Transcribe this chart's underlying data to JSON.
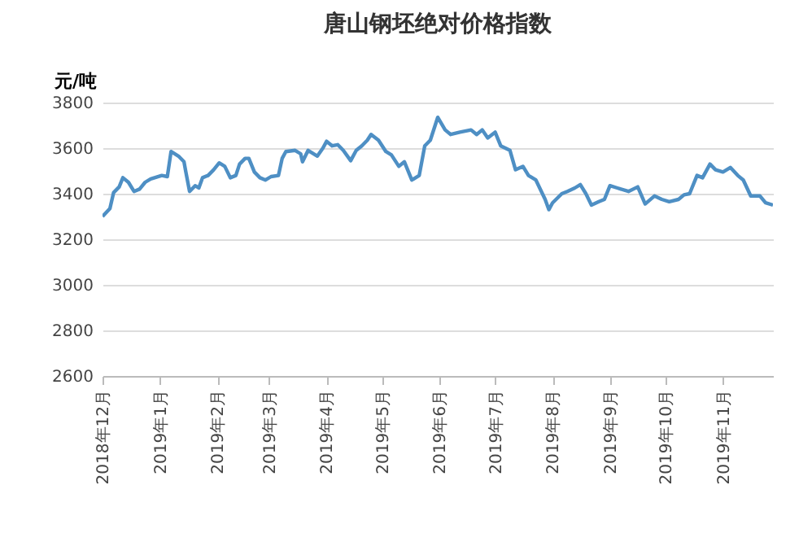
{
  "chart_data": {
    "type": "line",
    "title": "唐山钢坯绝对价格指数",
    "ylabel": "元/吨",
    "x": [
      "2018-12-01",
      "2018-12-05",
      "2018-12-07",
      "2018-12-10",
      "2018-12-12",
      "2018-12-15",
      "2018-12-18",
      "2018-12-21",
      "2018-12-24",
      "2018-12-27",
      "2019-01-02",
      "2019-01-05",
      "2019-01-07",
      "2019-01-11",
      "2019-01-14",
      "2019-01-15",
      "2019-01-17",
      "2019-01-20",
      "2019-01-22",
      "2019-01-24",
      "2019-01-27",
      "2019-01-30",
      "2019-02-02",
      "2019-02-05",
      "2019-02-08",
      "2019-02-11",
      "2019-02-13",
      "2019-02-16",
      "2019-02-18",
      "2019-02-21",
      "2019-02-24",
      "2019-02-27",
      "2019-03-02",
      "2019-03-06",
      "2019-03-08",
      "2019-03-10",
      "2019-03-15",
      "2019-03-18",
      "2019-03-19",
      "2019-03-22",
      "2019-03-27",
      "2019-03-30",
      "2019-04-01",
      "2019-04-04",
      "2019-04-07",
      "2019-04-10",
      "2019-04-14",
      "2019-04-17",
      "2019-04-20",
      "2019-04-23",
      "2019-04-25",
      "2019-04-29",
      "2019-05-03",
      "2019-05-06",
      "2019-05-10",
      "2019-05-13",
      "2019-05-17",
      "2019-05-21",
      "2019-05-24",
      "2019-05-27",
      "2019-05-31",
      "2019-06-04",
      "2019-06-07",
      "2019-06-12",
      "2019-06-18",
      "2019-06-21",
      "2019-06-24",
      "2019-06-27",
      "2019-07-01",
      "2019-07-04",
      "2019-07-09",
      "2019-07-12",
      "2019-07-16",
      "2019-07-19",
      "2019-07-23",
      "2019-07-28",
      "2019-07-30",
      "2019-08-01",
      "2019-08-06",
      "2019-08-09",
      "2019-08-13",
      "2019-08-16",
      "2019-08-19",
      "2019-08-22",
      "2019-08-26",
      "2019-08-29",
      "2019-09-01",
      "2019-09-05",
      "2019-09-11",
      "2019-09-16",
      "2019-09-20",
      "2019-09-25",
      "2019-09-29",
      "2019-10-03",
      "2019-10-08",
      "2019-10-11",
      "2019-10-14",
      "2019-10-18",
      "2019-10-21",
      "2019-10-25",
      "2019-10-28",
      "2019-11-01",
      "2019-11-05",
      "2019-11-09",
      "2019-11-12",
      "2019-11-16",
      "2019-11-21",
      "2019-11-24",
      "2019-11-28"
    ],
    "series": [
      {
        "color": "#4e8fc4",
        "values": [
          3300,
          3335,
          3405,
          3430,
          3470,
          3450,
          3410,
          3420,
          3450,
          3465,
          3480,
          3475,
          3585,
          3565,
          3540,
          3495,
          3410,
          3435,
          3425,
          3470,
          3480,
          3505,
          3535,
          3520,
          3470,
          3480,
          3530,
          3555,
          3555,
          3495,
          3470,
          3460,
          3475,
          3480,
          3555,
          3585,
          3590,
          3575,
          3540,
          3590,
          3565,
          3600,
          3630,
          3610,
          3615,
          3590,
          3545,
          3590,
          3610,
          3635,
          3660,
          3635,
          3585,
          3570,
          3520,
          3540,
          3460,
          3480,
          3610,
          3635,
          3735,
          3680,
          3660,
          3670,
          3680,
          3660,
          3680,
          3645,
          3670,
          3610,
          3590,
          3505,
          3520,
          3480,
          3460,
          3375,
          3330,
          3360,
          3400,
          3410,
          3425,
          3440,
          3400,
          3350,
          3365,
          3375,
          3435,
          3425,
          3410,
          3430,
          3355,
          3390,
          3375,
          3365,
          3375,
          3395,
          3400,
          3480,
          3470,
          3530,
          3505,
          3495,
          3515,
          3480,
          3460,
          3390,
          3390,
          3360,
          3350
        ]
      }
    ],
    "xlim": [
      "2018-12-01",
      "2019-11-28"
    ],
    "xticks": [
      {
        "value": "2018-12-01",
        "label": "2018年12月"
      },
      {
        "value": "2019-01-01",
        "label": "2019年1月"
      },
      {
        "value": "2019-02-01",
        "label": "2019年2月"
      },
      {
        "value": "2019-03-01",
        "label": "2019年3月"
      },
      {
        "value": "2019-04-01",
        "label": "2019年4月"
      },
      {
        "value": "2019-05-01",
        "label": "2019年5月"
      },
      {
        "value": "2019-06-01",
        "label": "2019年6月"
      },
      {
        "value": "2019-07-01",
        "label": "2019年7月"
      },
      {
        "value": "2019-08-01",
        "label": "2019年8月"
      },
      {
        "value": "2019-09-01",
        "label": "2019年9月"
      },
      {
        "value": "2019-10-01",
        "label": "2019年10月"
      },
      {
        "value": "2019-11-01",
        "label": "2019年11月"
      }
    ],
    "ylim": [
      2600,
      3800
    ],
    "yticks": [
      2600,
      2800,
      3000,
      3200,
      3400,
      3600,
      3800
    ],
    "grid": "y"
  }
}
